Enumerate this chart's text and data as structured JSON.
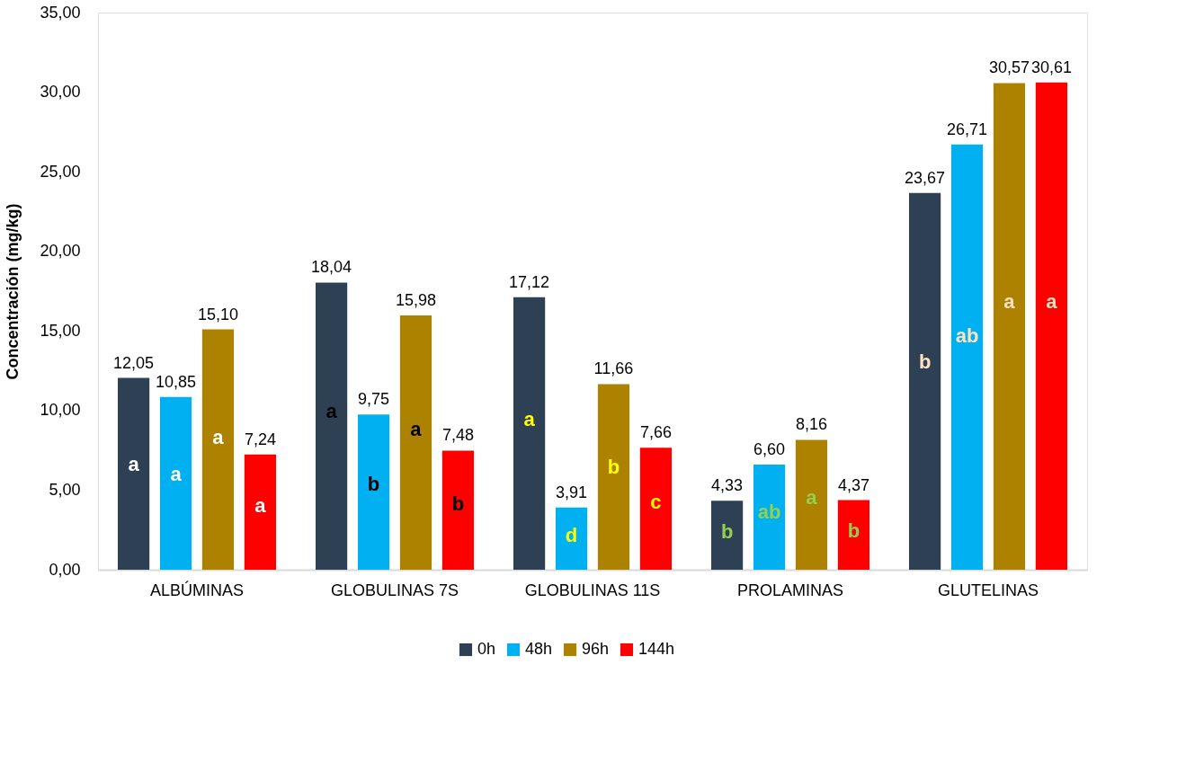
{
  "chart_data": {
    "type": "bar",
    "ylabel": "Concentración (mg/kg)",
    "categories": [
      "ALBÚMINAS",
      "GLOBULINAS 7S",
      "GLOBULINAS 11S",
      "PROLAMINAS",
      "GLUTELINAS"
    ],
    "series": [
      {
        "name": "0h",
        "color": "#2e4053",
        "values": [
          12.05,
          18.04,
          17.12,
          4.33,
          23.67
        ]
      },
      {
        "name": "48h",
        "color": "#00b0f0",
        "values": [
          10.85,
          9.75,
          3.91,
          6.6,
          26.71
        ]
      },
      {
        "name": "96h",
        "color": "#ad8200",
        "values": [
          15.1,
          15.98,
          11.66,
          8.16,
          30.57
        ]
      },
      {
        "name": "144h",
        "color": "#ff0000",
        "values": [
          7.24,
          7.48,
          7.66,
          4.37,
          30.61
        ]
      }
    ],
    "ylim": [
      0,
      35
    ],
    "yticks": [
      {
        "value": 0,
        "label": "0,00"
      },
      {
        "value": 5,
        "label": "5,00"
      },
      {
        "value": 10,
        "label": "10,00"
      },
      {
        "value": 15,
        "label": "15,00"
      },
      {
        "value": 20,
        "label": "20,00"
      },
      {
        "value": 25,
        "label": "25,00"
      },
      {
        "value": 30,
        "label": "30,00"
      },
      {
        "value": 35,
        "label": "35,00"
      }
    ],
    "value_labels": [
      [
        "12,05",
        "18,04",
        "17,12",
        "4,33",
        "23,67"
      ],
      [
        "10,85",
        "9,75",
        "3,91",
        "6,60",
        "26,71"
      ],
      [
        "15,10",
        "15,98",
        "11,66",
        "8,16",
        "30,57"
      ],
      [
        "7,24",
        "7,48",
        "7,66",
        "4,37",
        "30,61"
      ]
    ],
    "annotations": [
      "a",
      "a",
      "a",
      "a",
      "a",
      "b",
      "a",
      "b",
      "a",
      "d",
      "b",
      "c",
      "b",
      "ab",
      "a",
      "b",
      "b",
      "ab",
      "a",
      "a"
    ],
    "legend": "bottom",
    "grid": false
  }
}
